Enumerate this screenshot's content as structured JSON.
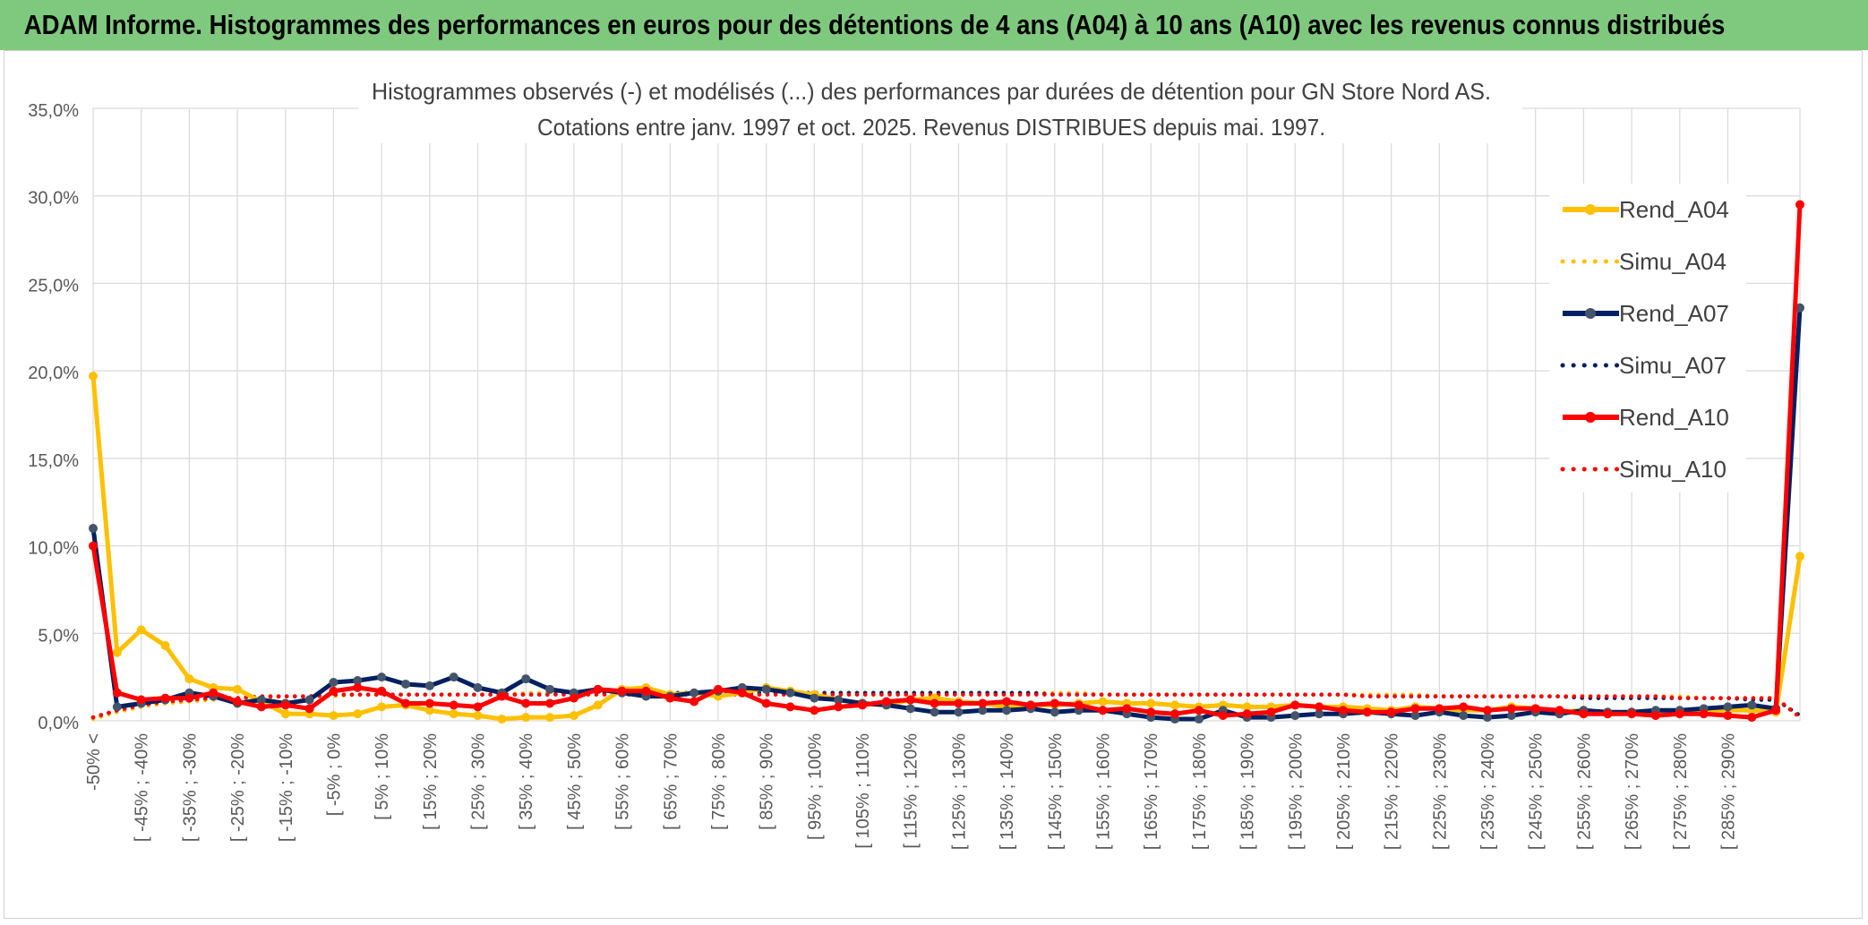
{
  "banner": {
    "title": "ADAM Informe. Histogrammes des performances en euros pour des détentions de 4 ans (A04) à 10 ans (A10) avec les revenus connus distribués"
  },
  "colors": {
    "banner_bg": "#7fc97f",
    "a04": "#ffc000",
    "a07": "#002060",
    "a07_marker": "#44546a",
    "a10": "#ff0000",
    "grid": "#d9d9d9",
    "axis_text": "#595959"
  },
  "chart_data": {
    "type": "line",
    "title": "Histogrammes observés (-) et modélisés (...) des performances par durées de détention pour GN Store Nord AS.",
    "subtitle": "Cotations entre janv. 1997 et oct. 2025. Revenus DISTRIBUES depuis mai. 1997.",
    "xlabel": "",
    "ylabel": "",
    "ylim": [
      0,
      35
    ],
    "y_ticks": [
      "0,0%",
      "5,0%",
      "10,0%",
      "15,0%",
      "20,0%",
      "25,0%",
      "30,0%",
      "35,0%"
    ],
    "x_tick_labels": [
      "-50% <",
      "[ -45% ; -40%",
      "[ -35% ; -30%",
      "[ -25% ; -20%",
      "[ -15% ; -10%",
      "[ -5% ; 0%",
      "[ 5% ; 10%",
      "[ 15% ; 20%",
      "[ 25% ; 30%",
      "[ 35% ; 40%",
      "[ 45% ; 50%",
      "[ 55% ; 60%",
      "[ 65% ; 70%",
      "[ 75% ; 80%",
      "[ 85% ; 90%",
      "[ 95% ; 100%",
      "[ 105% ; 110%",
      "[ 115% ; 120%",
      "[ 125% ; 130%",
      "[ 135% ; 140%",
      "[ 145% ; 150%",
      "[ 155% ; 160%",
      "[ 165% ; 170%",
      "[ 175% ; 180%",
      "[ 185% ; 190%",
      "[ 195% ; 200%",
      "[ 205% ; 210%",
      "[ 215% ; 220%",
      "[ 225% ; 230%",
      "[ 235% ; 240%",
      "[ 245% ; 250%",
      "[ 255% ; 260%",
      "[ 265% ; 270%",
      "[ 275% ; 280%",
      "[ 285% ; 290%"
    ],
    "grid": true,
    "legend_position": "right",
    "series": [
      {
        "name": "Rend_A04",
        "style": "solid",
        "color": "#ffc000",
        "values": [
          19.7,
          3.9,
          5.2,
          4.3,
          2.4,
          1.9,
          1.8,
          1.1,
          0.4,
          0.4,
          0.3,
          0.4,
          0.8,
          0.9,
          0.6,
          0.4,
          0.3,
          0.1,
          0.2,
          0.2,
          0.3,
          0.9,
          1.8,
          1.9,
          1.5,
          1.6,
          1.4,
          1.6,
          1.9,
          1.7,
          1.5,
          1.2,
          1.0,
          0.9,
          1.2,
          1.3,
          1.1,
          1.0,
          0.8,
          0.9,
          0.9,
          1.0,
          1.1,
          1.0,
          1.0,
          0.9,
          0.8,
          0.9,
          0.8,
          0.8,
          0.9,
          0.8,
          0.8,
          0.7,
          0.6,
          0.8,
          0.7,
          0.6,
          0.6,
          0.8,
          0.7,
          0.5,
          0.6,
          0.4,
          0.5,
          0.5,
          0.6,
          0.5,
          0.6,
          0.6,
          0.5,
          9.4
        ]
      },
      {
        "name": "Simu_A04",
        "style": "dotted",
        "color": "#ffc000",
        "values": [
          0.1,
          0.5,
          0.8,
          1.0,
          1.1,
          1.2,
          1.3,
          1.3,
          1.4,
          1.4,
          1.4,
          1.5,
          1.5,
          1.5,
          1.5,
          1.5,
          1.5,
          1.5,
          1.6,
          1.6,
          1.6,
          1.6,
          1.6,
          1.6,
          1.6,
          1.6,
          1.6,
          1.6,
          1.6,
          1.6,
          1.6,
          1.6,
          1.6,
          1.6,
          1.6,
          1.6,
          1.6,
          1.6,
          1.6,
          1.6,
          1.6,
          1.6,
          1.5,
          1.5,
          1.5,
          1.5,
          1.5,
          1.5,
          1.5,
          1.5,
          1.5,
          1.5,
          1.5,
          1.5,
          1.5,
          1.5,
          1.4,
          1.4,
          1.4,
          1.4,
          1.4,
          1.4,
          1.4,
          1.4,
          1.4,
          1.4,
          1.4,
          1.3,
          1.3,
          1.3,
          1.3,
          0.2
        ]
      },
      {
        "name": "Rend_A07",
        "style": "solid",
        "color": "#002060",
        "values": [
          11.0,
          0.8,
          1.0,
          1.2,
          1.6,
          1.4,
          1.0,
          1.2,
          1.0,
          1.2,
          2.2,
          2.3,
          2.5,
          2.1,
          2.0,
          2.5,
          1.9,
          1.6,
          2.4,
          1.8,
          1.6,
          1.8,
          1.6,
          1.4,
          1.4,
          1.6,
          1.7,
          1.9,
          1.8,
          1.6,
          1.3,
          1.2,
          1.0,
          0.9,
          0.7,
          0.5,
          0.5,
          0.6,
          0.6,
          0.7,
          0.5,
          0.6,
          0.6,
          0.4,
          0.2,
          0.1,
          0.1,
          0.6,
          0.2,
          0.2,
          0.3,
          0.4,
          0.4,
          0.5,
          0.4,
          0.3,
          0.5,
          0.3,
          0.2,
          0.3,
          0.5,
          0.4,
          0.6,
          0.5,
          0.5,
          0.6,
          0.6,
          0.7,
          0.8,
          0.9,
          0.7,
          23.6
        ]
      },
      {
        "name": "Simu_A07",
        "style": "dotted",
        "color": "#002060",
        "values": [
          0.2,
          0.6,
          0.9,
          1.1,
          1.2,
          1.3,
          1.3,
          1.4,
          1.4,
          1.4,
          1.5,
          1.5,
          1.5,
          1.5,
          1.5,
          1.5,
          1.5,
          1.5,
          1.5,
          1.5,
          1.6,
          1.6,
          1.6,
          1.6,
          1.6,
          1.6,
          1.6,
          1.6,
          1.6,
          1.6,
          1.6,
          1.6,
          1.6,
          1.6,
          1.6,
          1.6,
          1.6,
          1.6,
          1.6,
          1.6,
          1.5,
          1.5,
          1.5,
          1.5,
          1.5,
          1.5,
          1.5,
          1.5,
          1.5,
          1.5,
          1.5,
          1.5,
          1.5,
          1.4,
          1.4,
          1.4,
          1.4,
          1.4,
          1.4,
          1.4,
          1.4,
          1.4,
          1.3,
          1.3,
          1.3,
          1.3,
          1.3,
          1.3,
          1.3,
          1.2,
          1.2,
          0.3
        ]
      },
      {
        "name": "Rend_A10",
        "style": "solid",
        "color": "#ff0000",
        "values": [
          10.0,
          1.6,
          1.2,
          1.3,
          1.3,
          1.6,
          1.1,
          0.8,
          0.9,
          0.7,
          1.7,
          1.9,
          1.7,
          1.0,
          1.0,
          0.9,
          0.8,
          1.4,
          1.0,
          1.0,
          1.3,
          1.8,
          1.7,
          1.7,
          1.3,
          1.1,
          1.8,
          1.6,
          1.0,
          0.8,
          0.6,
          0.8,
          0.9,
          1.1,
          1.2,
          1.0,
          1.0,
          1.0,
          1.1,
          0.9,
          1.0,
          0.9,
          0.6,
          0.7,
          0.5,
          0.4,
          0.6,
          0.3,
          0.4,
          0.5,
          0.9,
          0.8,
          0.6,
          0.5,
          0.5,
          0.7,
          0.7,
          0.8,
          0.6,
          0.7,
          0.7,
          0.6,
          0.4,
          0.4,
          0.4,
          0.3,
          0.4,
          0.4,
          0.3,
          0.2,
          0.6,
          29.5
        ]
      },
      {
        "name": "Simu_A10",
        "style": "dotted",
        "color": "#ff0000",
        "values": [
          0.2,
          0.6,
          0.9,
          1.1,
          1.2,
          1.3,
          1.3,
          1.4,
          1.4,
          1.4,
          1.5,
          1.5,
          1.5,
          1.5,
          1.5,
          1.5,
          1.5,
          1.5,
          1.5,
          1.5,
          1.5,
          1.5,
          1.5,
          1.5,
          1.5,
          1.5,
          1.5,
          1.5,
          1.5,
          1.5,
          1.5,
          1.5,
          1.5,
          1.5,
          1.5,
          1.5,
          1.5,
          1.5,
          1.5,
          1.5,
          1.5,
          1.5,
          1.5,
          1.5,
          1.5,
          1.5,
          1.5,
          1.5,
          1.5,
          1.5,
          1.5,
          1.5,
          1.5,
          1.4,
          1.4,
          1.4,
          1.4,
          1.4,
          1.4,
          1.4,
          1.4,
          1.4,
          1.4,
          1.4,
          1.4,
          1.4,
          1.3,
          1.3,
          1.3,
          1.3,
          1.3,
          0.2
        ]
      }
    ]
  }
}
